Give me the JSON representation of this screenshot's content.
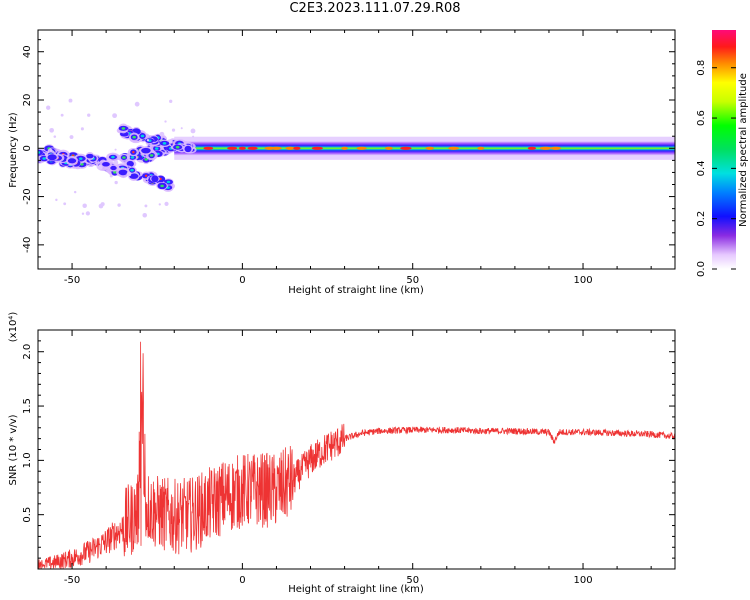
{
  "figure": {
    "title": "C2E3.2023.111.07.29.R08"
  },
  "chart_data": [
    {
      "type": "heatmap",
      "title": "",
      "xlabel": "Height of straight line (km)",
      "ylabel": "Frequency (Hz)",
      "xlim": [
        -60,
        127
      ],
      "ylim": [
        -50,
        49
      ],
      "xticks": [
        -50,
        0,
        50,
        100
      ],
      "yticks": [
        -40,
        -20,
        0,
        20,
        40
      ],
      "colorbar": {
        "label": "Normalized spectral amplitude",
        "range": [
          0,
          0.95
        ],
        "ticks": [
          0.0,
          0.2,
          0.4,
          0.6,
          0.8
        ]
      },
      "features": [
        {
          "name": "main band",
          "x_from": -60,
          "x_to": 127,
          "center_hz": 0,
          "half_width_hz": 3
        },
        {
          "name": "lower descending branch",
          "x": [
            -60,
            -50,
            -40,
            -32,
            -26,
            -20
          ],
          "y": [
            -3,
            -5,
            -8,
            -10,
            -13,
            -16
          ]
        },
        {
          "name": "upper converging branch",
          "x": [
            -35,
            -30,
            -25,
            -20,
            -15
          ],
          "y": [
            7,
            5,
            3,
            1,
            0
          ]
        }
      ]
    },
    {
      "type": "line",
      "title": "",
      "xlabel": "Height of straight line (km)",
      "ylabel": "SNR (10 * v/v)",
      "y_multiplier": "(x10⁴)",
      "xlim": [
        -60,
        127
      ],
      "ylim": [
        0,
        2.2
      ],
      "xticks": [
        -50,
        0,
        50,
        100
      ],
      "yticks": [
        0.5,
        1.0,
        1.5,
        2.0
      ],
      "line_color": "#ee3333",
      "series": [
        {
          "values_note": "SNR envelope (x10^4)",
          "x": [
            -60,
            -55,
            -50,
            -45,
            -40,
            -35,
            -30,
            -29,
            -25,
            -20,
            -15,
            -10,
            -5,
            0,
            5,
            10,
            15,
            20,
            25,
            30,
            35,
            40,
            50,
            60,
            70,
            80,
            90,
            91.5,
            93,
            100,
            110,
            120,
            127
          ],
          "y": [
            0.04,
            0.06,
            0.1,
            0.16,
            0.25,
            0.38,
            0.55,
            0.6,
            0.52,
            0.48,
            0.5,
            0.58,
            0.67,
            0.72,
            0.73,
            0.72,
            0.82,
            1.0,
            1.12,
            1.2,
            1.25,
            1.27,
            1.28,
            1.28,
            1.27,
            1.27,
            1.26,
            1.17,
            1.26,
            1.26,
            1.25,
            1.24,
            1.22
          ]
        }
      ]
    }
  ]
}
